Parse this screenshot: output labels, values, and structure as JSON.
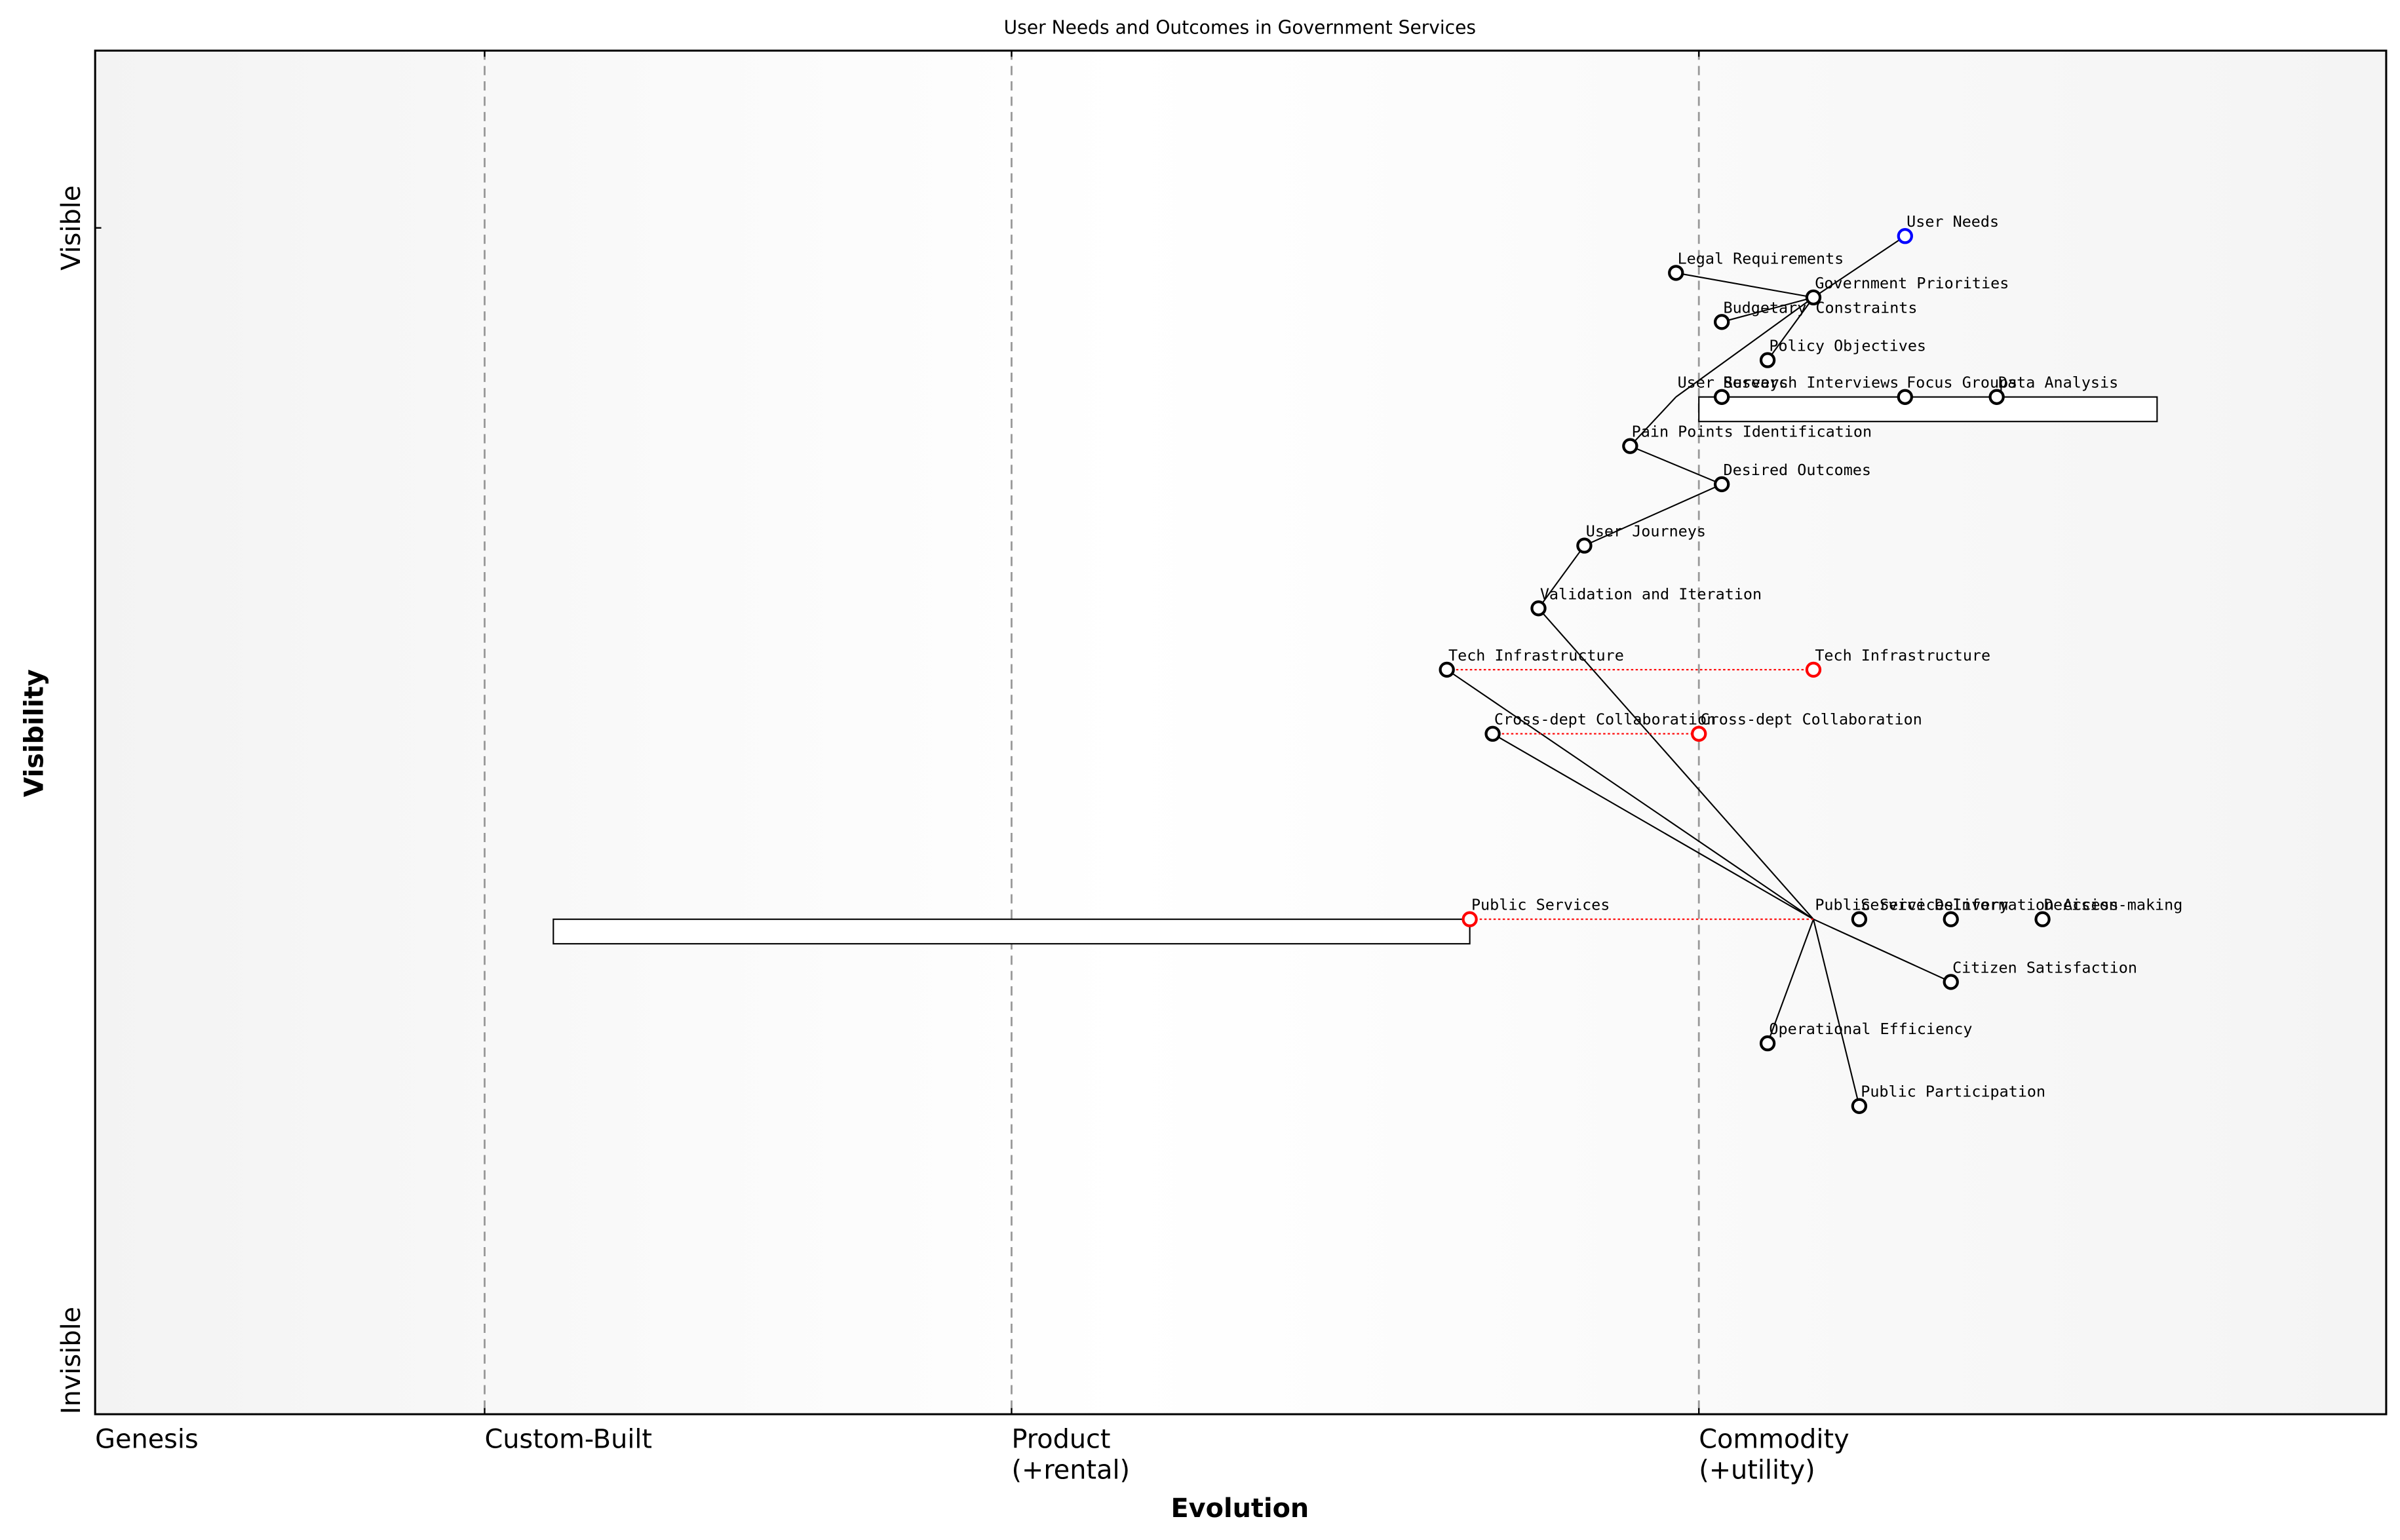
{
  "chart_data": {
    "type": "wardley",
    "title": "User Needs and Outcomes in Government Services",
    "xlabel": "Evolution",
    "ylabel": "Visibility",
    "xlim": [
      0,
      1
    ],
    "ylim": [
      0,
      1
    ],
    "xticks": [
      {
        "value": 0,
        "label": "Genesis"
      },
      {
        "value": 0.17,
        "label": "Custom-Built"
      },
      {
        "value": 0.4,
        "label": "Product\n(+rental)"
      },
      {
        "value": 0.7,
        "label": "Commodity\n(+utility)"
      }
    ],
    "yticks": [
      {
        "value": 0,
        "label": "Invisible"
      },
      {
        "value": 0.87,
        "label": "Visible"
      }
    ],
    "components": [
      {
        "name": "User Needs",
        "evolution": 0.79,
        "visibility": 0.864,
        "color": "#0000ff"
      },
      {
        "name": "Legal Requirements",
        "evolution": 0.69,
        "visibility": 0.837
      },
      {
        "name": "Government Priorities",
        "evolution": 0.75,
        "visibility": 0.819
      },
      {
        "name": "Budgetary Constraints",
        "evolution": 0.71,
        "visibility": 0.801
      },
      {
        "name": "Policy Objectives",
        "evolution": 0.73,
        "visibility": 0.773
      },
      {
        "name": "User Surveys",
        "evolution": 0.69,
        "visibility": 0.746,
        "pipeline": [
          0.7,
          0.9
        ]
      },
      {
        "name": "Research Interviews",
        "evolution": 0.71,
        "visibility": 0.746
      },
      {
        "name": "Focus Groups",
        "evolution": 0.79,
        "visibility": 0.746
      },
      {
        "name": "Data Analysis",
        "evolution": 0.83,
        "visibility": 0.746
      },
      {
        "name": "Pain Points Identification",
        "evolution": 0.67,
        "visibility": 0.71
      },
      {
        "name": "Desired Outcomes",
        "evolution": 0.71,
        "visibility": 0.682
      },
      {
        "name": "User Journeys",
        "evolution": 0.65,
        "visibility": 0.637
      },
      {
        "name": "Validation and Iteration",
        "evolution": 0.63,
        "visibility": 0.591
      },
      {
        "name": "Tech Infrastructure",
        "evolution": 0.59,
        "visibility": 0.546,
        "evolve_to": 0.75
      },
      {
        "name": "Cross-dept Collaboration",
        "evolution": 0.61,
        "visibility": 0.499,
        "evolve_to": 0.7
      },
      {
        "name": "Public Services",
        "evolution": 0.75,
        "visibility": 0.363,
        "evolve_to": 0.6,
        "pipeline": [
          0.2,
          0.6
        ]
      },
      {
        "name": "Service Delivery",
        "evolution": 0.77,
        "visibility": 0.363
      },
      {
        "name": "Information Access",
        "evolution": 0.81,
        "visibility": 0.363
      },
      {
        "name": "Decision-making",
        "evolution": 0.85,
        "visibility": 0.363
      },
      {
        "name": "Citizen Satisfaction",
        "evolution": 0.81,
        "visibility": 0.317
      },
      {
        "name": "Operational Efficiency",
        "evolution": 0.73,
        "visibility": 0.272
      },
      {
        "name": "Public Participation",
        "evolution": 0.77,
        "visibility": 0.226
      }
    ],
    "links": [
      [
        "User Needs",
        "Government Priorities"
      ],
      [
        "Legal Requirements",
        "Government Priorities"
      ],
      [
        "Government Priorities",
        "Budgetary Constraints"
      ],
      [
        "Government Priorities",
        "Policy Objectives"
      ],
      [
        "Government Priorities",
        "User Surveys"
      ],
      [
        "User Surveys",
        "Pain Points Identification"
      ],
      [
        "Pain Points Identification",
        "Desired Outcomes"
      ],
      [
        "Desired Outcomes",
        "User Journeys"
      ],
      [
        "User Journeys",
        "Validation and Iteration"
      ],
      [
        "Validation and Iteration",
        "Public Services"
      ],
      [
        "Tech Infrastructure",
        "Public Services"
      ],
      [
        "Cross-dept Collaboration",
        "Public Services"
      ],
      [
        "Public Services",
        "Citizen Satisfaction"
      ],
      [
        "Public Services",
        "Operational Efficiency"
      ],
      [
        "Public Services",
        "Public Participation"
      ]
    ],
    "evolve_color": "#ff0000"
  }
}
